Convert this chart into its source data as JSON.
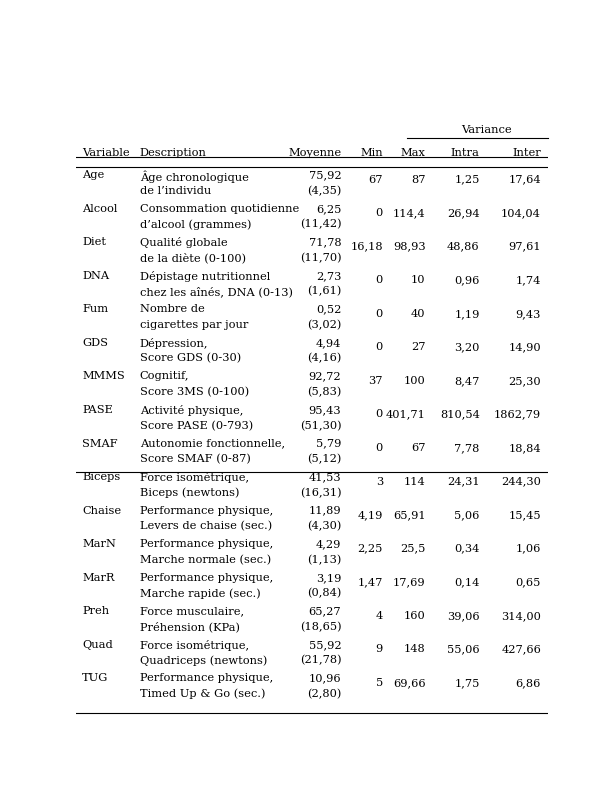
{
  "variance_header": "Variance",
  "rows": [
    {
      "var": "Age",
      "desc1": "Âge chronologique",
      "desc2": "de l’individu",
      "moy1": "75,92",
      "moy2": "(4,35)",
      "min": "67",
      "max": "87",
      "intra": "1,25",
      "inter": "17,64",
      "group": 1
    },
    {
      "var": "Alcool",
      "desc1": "Consommation quotidienne",
      "desc2": "d’alcool (grammes)",
      "moy1": "6,25",
      "moy2": "(11,42)",
      "min": "0",
      "max": "114,4",
      "intra": "26,94",
      "inter": "104,04",
      "group": 1
    },
    {
      "var": "Diet",
      "desc1": "Qualité globale",
      "desc2": "de la diète (0-100)",
      "moy1": "71,78",
      "moy2": "(11,70)",
      "min": "16,18",
      "max": "98,93",
      "intra": "48,86",
      "inter": "97,61",
      "group": 1
    },
    {
      "var": "DNA",
      "desc1": "Dépistage nutritionnel",
      "desc2": "chez les aînés, DNA (0-13)",
      "moy1": "2,73",
      "moy2": "(1,61)",
      "min": "0",
      "max": "10",
      "intra": "0,96",
      "inter": "1,74",
      "group": 1
    },
    {
      "var": "Fum",
      "desc1": "Nombre de",
      "desc2": "cigarettes par jour",
      "moy1": "0,52",
      "moy2": "(3,02)",
      "min": "0",
      "max": "40",
      "intra": "1,19",
      "inter": "9,43",
      "group": 1
    },
    {
      "var": "GDS",
      "desc1": "Dépression,",
      "desc2": "Score GDS (0-30)",
      "moy1": "4,94",
      "moy2": "(4,16)",
      "min": "0",
      "max": "27",
      "intra": "3,20",
      "inter": "14,90",
      "group": 1
    },
    {
      "var": "MMMS",
      "desc1": "Cognitif,",
      "desc2": "Score 3MS (0-100)",
      "moy1": "92,72",
      "moy2": "(5,83)",
      "min": "37",
      "max": "100",
      "intra": "8,47",
      "inter": "25,30",
      "group": 1
    },
    {
      "var": "PASE",
      "desc1": "Activité physique,",
      "desc2": "Score PASE (0-793)",
      "moy1": "95,43",
      "moy2": "(51,30)",
      "min": "0",
      "max": "401,71",
      "intra": "810,54",
      "inter": "1862,79",
      "group": 1
    },
    {
      "var": "SMAF",
      "desc1": "Autonomie fonctionnelle,",
      "desc2": "Score SMAF (0-87)",
      "moy1": "5,79",
      "moy2": "(5,12)",
      "min": "0",
      "max": "67",
      "intra": "7,78",
      "inter": "18,84",
      "group": 1
    },
    {
      "var": "Biceps",
      "desc1": "Force isométrique,",
      "desc2": "Biceps (newtons)",
      "moy1": "41,53",
      "moy2": "(16,31)",
      "min": "3",
      "max": "114",
      "intra": "24,31",
      "inter": "244,30",
      "group": 2
    },
    {
      "var": "Chaise",
      "desc1": "Performance physique,",
      "desc2": "Levers de chaise (sec.)",
      "moy1": "11,89",
      "moy2": "(4,30)",
      "min": "4,19",
      "max": "65,91",
      "intra": "5,06",
      "inter": "15,45",
      "group": 2
    },
    {
      "var": "MarN",
      "desc1": "Performance physique,",
      "desc2": "Marche normale (sec.)",
      "moy1": "4,29",
      "moy2": "(1,13)",
      "min": "2,25",
      "max": "25,5",
      "intra": "0,34",
      "inter": "1,06",
      "group": 2
    },
    {
      "var": "MarR",
      "desc1": "Performance physique,",
      "desc2": "Marche rapide (sec.)",
      "moy1": "3,19",
      "moy2": "(0,84)",
      "min": "1,47",
      "max": "17,69",
      "intra": "0,14",
      "inter": "0,65",
      "group": 2
    },
    {
      "var": "Preh",
      "desc1": "Force musculaire,",
      "desc2": "Préhension (KPa)",
      "moy1": "65,27",
      "moy2": "(18,65)",
      "min": "4",
      "max": "160",
      "intra": "39,06",
      "inter": "314,00",
      "group": 2
    },
    {
      "var": "Quad",
      "desc1": "Force isométrique,",
      "desc2": "Quadriceps (newtons)",
      "moy1": "55,92",
      "moy2": "(21,78)",
      "min": "9",
      "max": "148",
      "intra": "55,06",
      "inter": "427,66",
      "group": 2
    },
    {
      "var": "TUG",
      "desc1": "Performance physique,",
      "desc2": "Timed Up & Go (sec.)",
      "moy1": "10,96",
      "moy2": "(2,80)",
      "min": "5",
      "max": "69,66",
      "intra": "1,75",
      "inter": "6,86",
      "group": 2
    }
  ],
  "font_size": 8.2,
  "bg_color": "#ffffff",
  "text_color": "#000000",
  "col_x": {
    "var": 0.013,
    "desc": 0.135,
    "moy_r": 0.562,
    "min_r": 0.65,
    "max_r": 0.74,
    "intra_r": 0.855,
    "inter_r": 0.985
  }
}
